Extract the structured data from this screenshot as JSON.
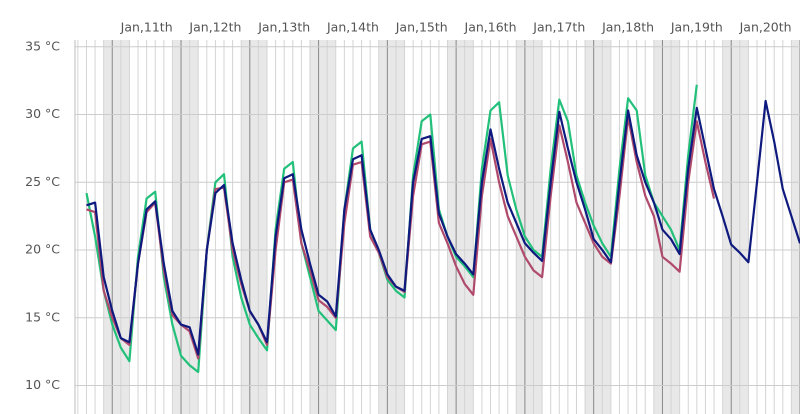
{
  "chart_data": {
    "type": "line",
    "x": [
      -9,
      -6,
      -3,
      0,
      3,
      6,
      9,
      12,
      15,
      18,
      21,
      24,
      27,
      30,
      33,
      36,
      39,
      42,
      45,
      48,
      51,
      54,
      57,
      60,
      63,
      66,
      69,
      72,
      75,
      78,
      81,
      84,
      87,
      90,
      93,
      96,
      99,
      102,
      105,
      108,
      111,
      114,
      117,
      120,
      123,
      126,
      129,
      132,
      135,
      138,
      141,
      144,
      147,
      150,
      153,
      156,
      159,
      162,
      165,
      168,
      171,
      174,
      177,
      180,
      183,
      186,
      189,
      192,
      195,
      198,
      201,
      204,
      207,
      210,
      213,
      216,
      219,
      222,
      225,
      228,
      231,
      234,
      237,
      240
    ],
    "series": [
      {
        "color": "#22c07a",
        "values": [
          24.2,
          21,
          17,
          14.5,
          12.8,
          11.8,
          19.5,
          23.8,
          24.3,
          18,
          14.5,
          12.2,
          11.5,
          11,
          20,
          25,
          25.6,
          19.5,
          16.5,
          14.5,
          13.5,
          12.6,
          21.5,
          26,
          26.5,
          20.5,
          18,
          15.5,
          14.8,
          14.1,
          23,
          27.5,
          28,
          21.5,
          19.8,
          17.8,
          17,
          16.5,
          25.5,
          29.5,
          30,
          23,
          21,
          19.5,
          18.8,
          18,
          26,
          30.3,
          30.9,
          25.5,
          23,
          21,
          20,
          19.5,
          26,
          31.1,
          29.5,
          25.5,
          23.5,
          21.8,
          20.5,
          19.5,
          26,
          31.2,
          30.3,
          25.5,
          23.5,
          22.5,
          21.5,
          20,
          27,
          32.2,
          null,
          null,
          null,
          null,
          null,
          null,
          null,
          null,
          null,
          null,
          null,
          null
        ]
      },
      {
        "color": "#b04a6c",
        "values": [
          23,
          22.8,
          17,
          15,
          13.5,
          13,
          19,
          22.8,
          23.5,
          18.5,
          15.2,
          14.5,
          14,
          12,
          20,
          24.5,
          24.6,
          20,
          17.5,
          15.5,
          14.5,
          13,
          20,
          25,
          25.2,
          20.5,
          18.5,
          16.3,
          15.8,
          15,
          22,
          26.3,
          26.5,
          21,
          19.8,
          18,
          17.3,
          16.9,
          24,
          27.8,
          28,
          22,
          20.5,
          18.8,
          17.5,
          16.7,
          24,
          28.2,
          25,
          22.5,
          21,
          19.5,
          18.5,
          18,
          24,
          29.2,
          26.5,
          23.5,
          22,
          20.5,
          19.5,
          19,
          24,
          29.8,
          26.5,
          24,
          22.5,
          19.5,
          19,
          18.4,
          25,
          29.5,
          26.5,
          23.8,
          null,
          null,
          null,
          null,
          null,
          null,
          null,
          null,
          null,
          null
        ]
      },
      {
        "color": "#0e1a7e",
        "values": [
          23.3,
          23.5,
          18,
          15.5,
          13.5,
          13.2,
          19,
          23,
          23.6,
          19,
          15.5,
          14.5,
          14.3,
          12.3,
          20,
          24.2,
          24.8,
          20.5,
          17.8,
          15.5,
          14.5,
          13.2,
          21,
          25.3,
          25.6,
          21.5,
          19,
          16.7,
          16.2,
          15.1,
          23,
          26.7,
          27,
          21.5,
          20,
          18.2,
          17.3,
          17,
          25,
          28.2,
          28.4,
          22.7,
          21,
          19.7,
          19,
          18.2,
          25,
          28.9,
          26,
          23.5,
          22,
          20.5,
          19.8,
          19.2,
          25,
          30.2,
          27.5,
          25,
          23,
          20.8,
          20,
          19.1,
          25,
          30.3,
          27,
          25,
          23.5,
          21.5,
          20.8,
          19.7,
          26,
          30.5,
          27.5,
          24.5,
          22.5,
          20.4,
          19.8,
          19.1,
          25,
          31,
          28,
          24.5,
          22.5,
          20.5
        ]
      }
    ],
    "xlim": [
      -13,
      240
    ],
    "xticks": [
      {
        "value": 12,
        "label": "Jan,11th"
      },
      {
        "value": 36,
        "label": "Jan,12th"
      },
      {
        "value": 60,
        "label": "Jan,13th"
      },
      {
        "value": 84,
        "label": "Jan,14th"
      },
      {
        "value": 108,
        "label": "Jan,15th"
      },
      {
        "value": 132,
        "label": "Jan,16th"
      },
      {
        "value": 156,
        "label": "Jan,17th"
      },
      {
        "value": 180,
        "label": "Jan,18th"
      },
      {
        "value": 204,
        "label": "Jan,19th"
      },
      {
        "value": 228,
        "label": "Jan,20th"
      }
    ],
    "ylim": [
      7.9,
      35.5
    ],
    "yticks": [
      {
        "value": 10,
        "label": "10 °C"
      },
      {
        "value": 15,
        "label": "15 °C"
      },
      {
        "value": 20,
        "label": "20 °C"
      },
      {
        "value": 25,
        "label": "25 °C"
      },
      {
        "value": 30,
        "label": "30 °C"
      },
      {
        "value": 35,
        "label": "35 °C"
      }
    ],
    "grid": true
  }
}
